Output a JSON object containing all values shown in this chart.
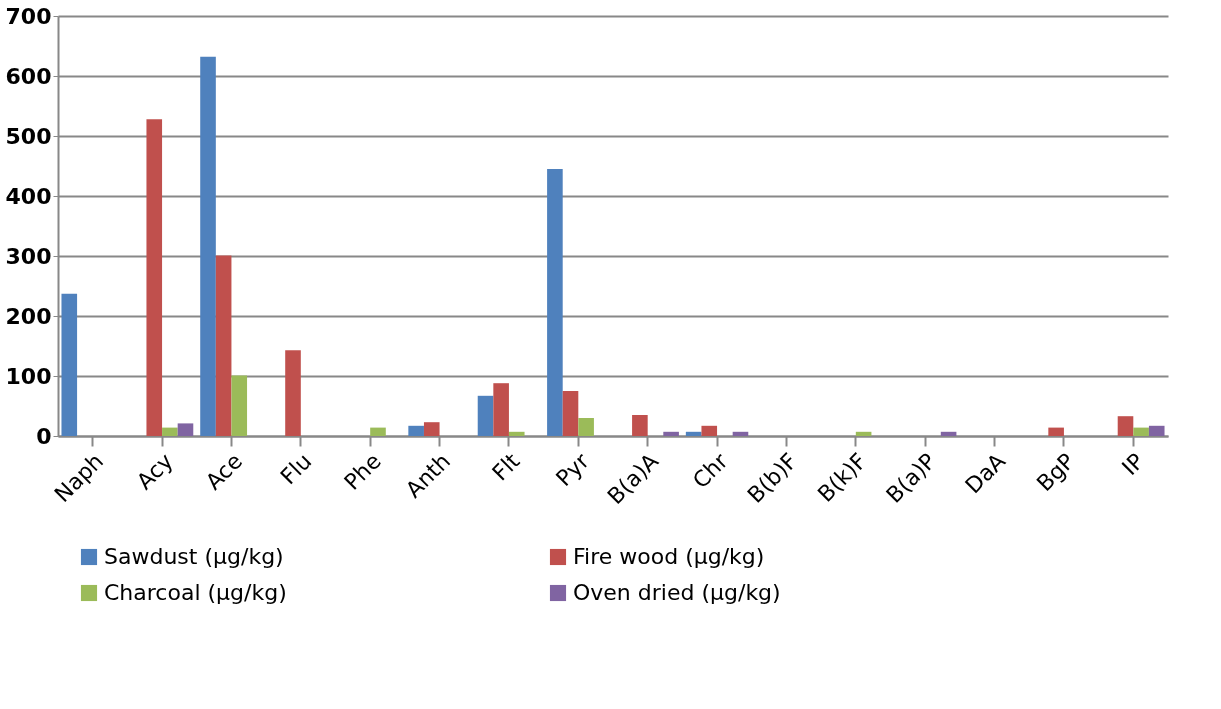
{
  "chart_data": {
    "type": "bar",
    "categories": [
      "Naph",
      "Acy",
      "Ace",
      "Flu",
      "Phe",
      "Anth",
      "Flt",
      "Pyr",
      "B(a)A",
      "Chr",
      "B(b)F",
      "B(k)F",
      "B(a)P",
      "DaA",
      "BgP",
      "IP"
    ],
    "series": [
      {
        "name": "Sawdust (µg/kg)",
        "color": "#4f81bd",
        "values": [
          237,
          0,
          632,
          0,
          0,
          17,
          67,
          445,
          0,
          7,
          0,
          0,
          0,
          0,
          0,
          0
        ]
      },
      {
        "name": "Fire wood (µg/kg)",
        "color": "#c0504d",
        "values": [
          0,
          528,
          301,
          143,
          0,
          23,
          88,
          75,
          35,
          17,
          0,
          0,
          0,
          0,
          14,
          33
        ]
      },
      {
        "name": "Charcoal (µg/kg)",
        "color": "#9bbb59",
        "values": [
          0,
          14,
          101,
          0,
          14,
          0,
          7,
          30,
          0,
          0,
          0,
          7,
          0,
          0,
          0,
          14
        ]
      },
      {
        "name": "Oven dried (µg/kg)",
        "color": "#8064a2",
        "values": [
          0,
          21,
          0,
          0,
          0,
          0,
          0,
          0,
          7,
          7,
          0,
          0,
          7,
          0,
          0,
          17
        ]
      }
    ],
    "ylim": [
      0,
      700
    ],
    "yticks": [
      0,
      100,
      200,
      300,
      400,
      500,
      600,
      700
    ],
    "grid": "y",
    "legend": "bottom"
  }
}
